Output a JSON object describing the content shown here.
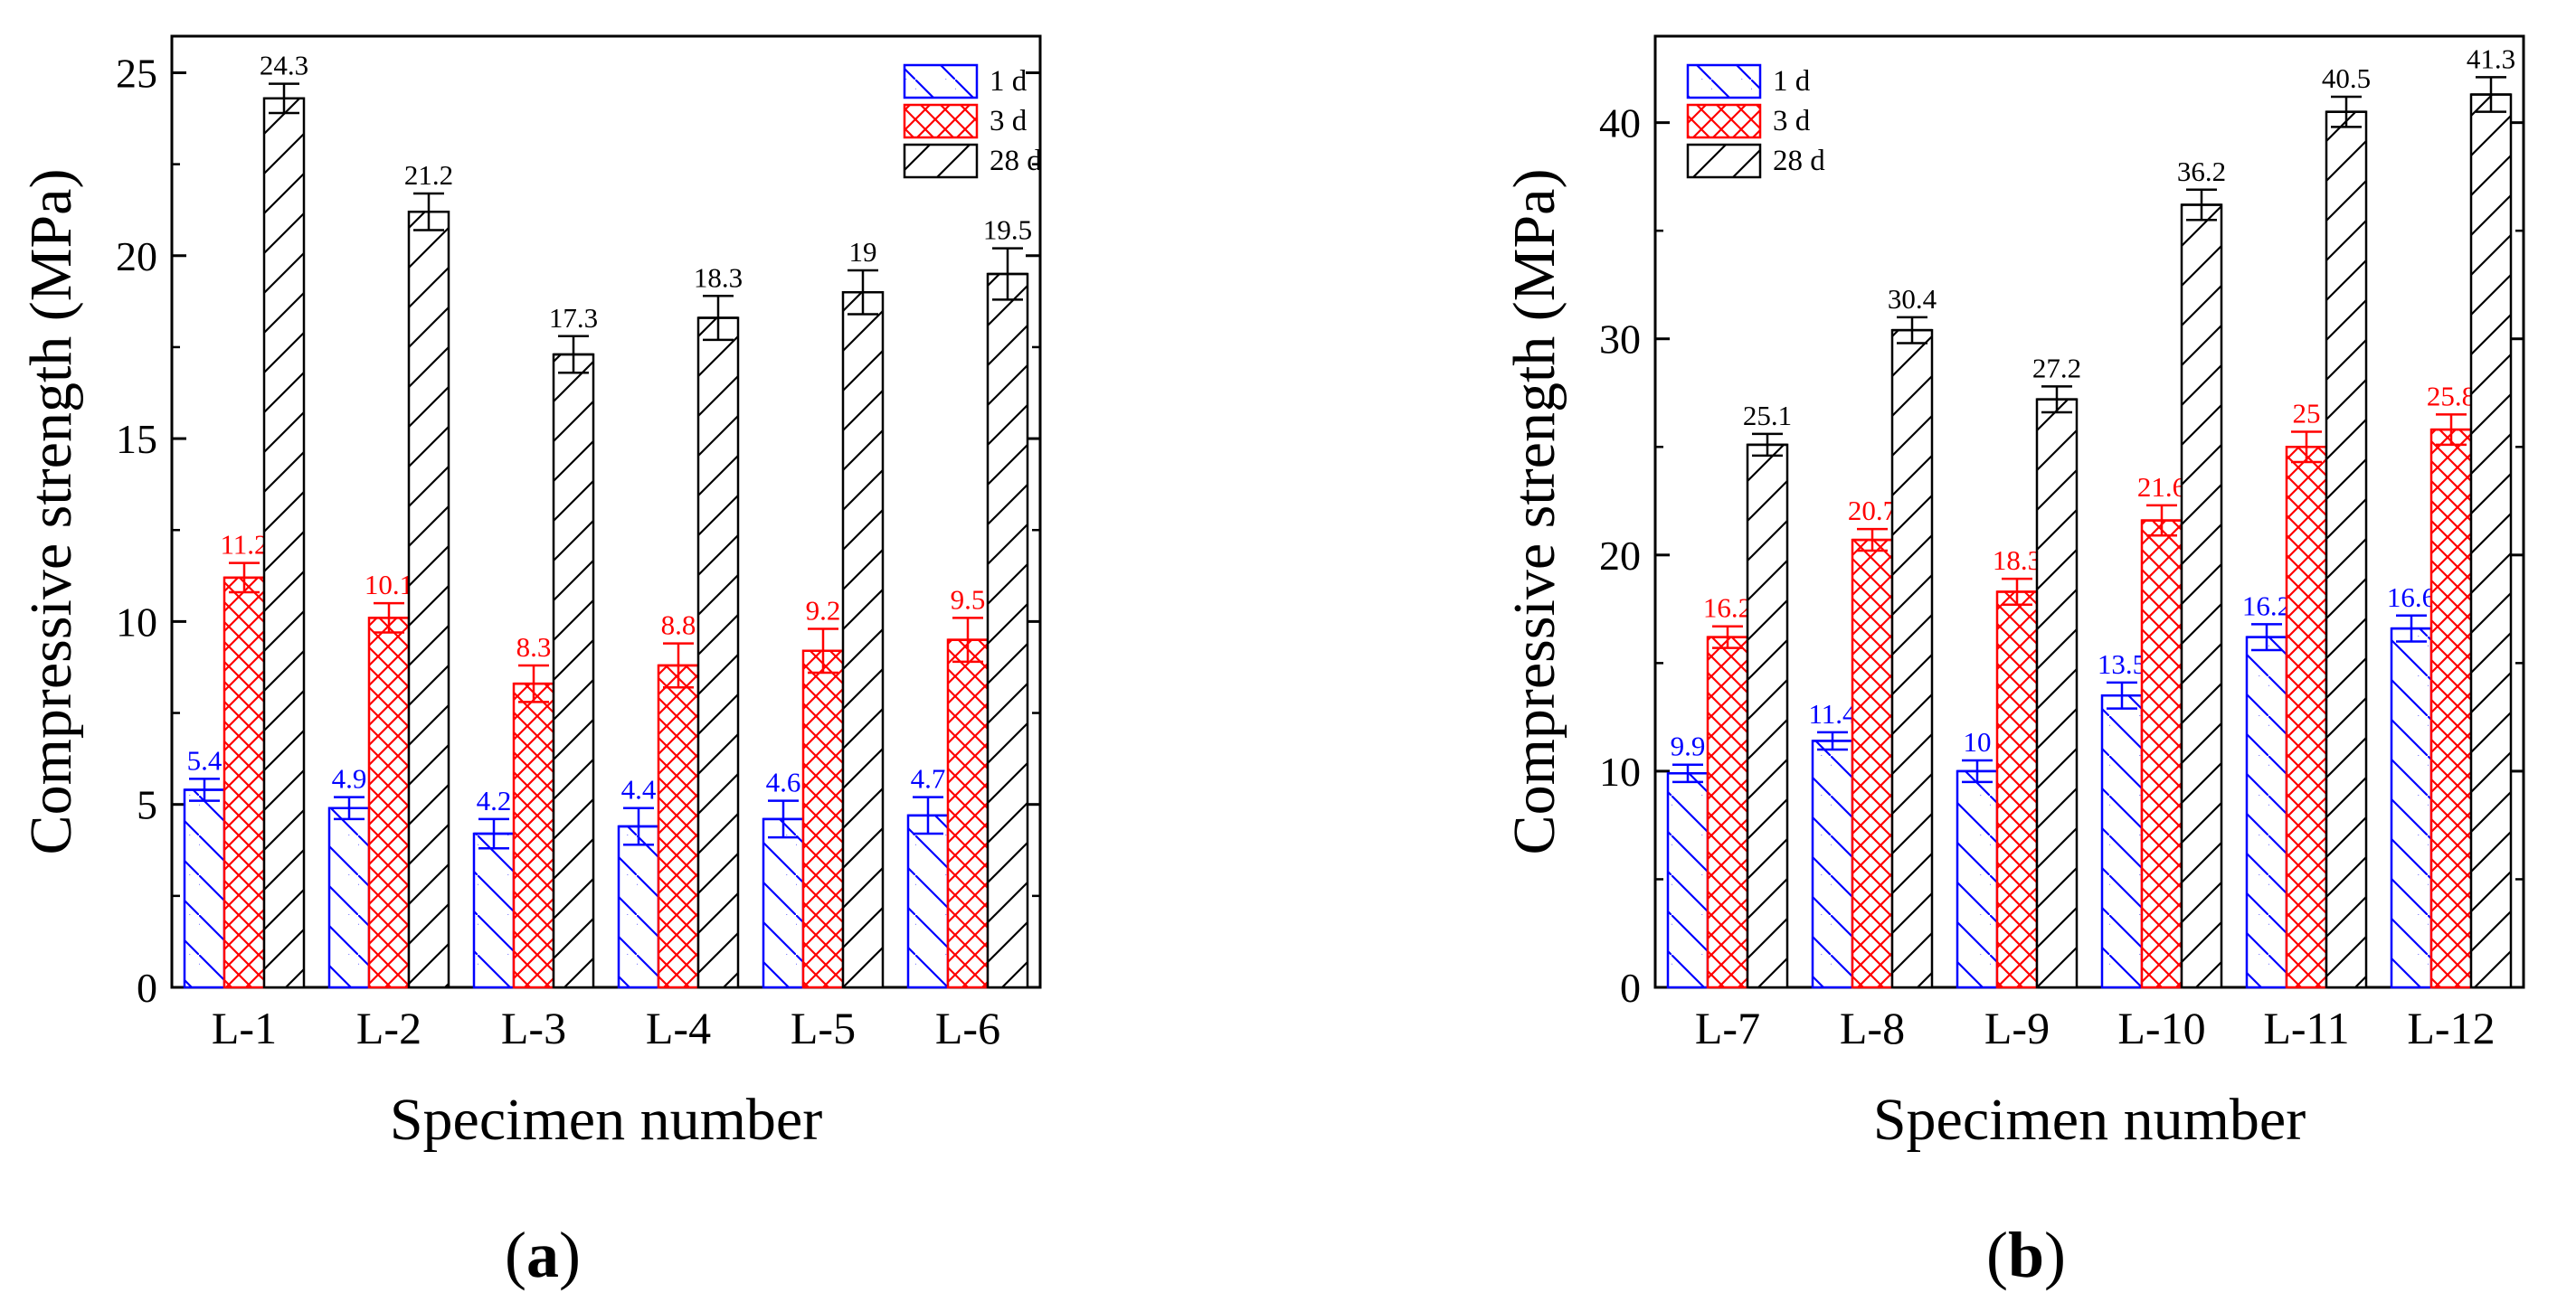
{
  "chart_data": [
    {
      "panel_label": "a",
      "type": "bar",
      "categories": [
        "L-1",
        "L-2",
        "L-3",
        "L-4",
        "L-5",
        "L-6"
      ],
      "series": [
        {
          "name": "1 d",
          "color": "#0000ff",
          "values": [
            5.4,
            4.9,
            4.2,
            4.4,
            4.6,
            4.7
          ],
          "errors": [
            0.3,
            0.3,
            0.4,
            0.5,
            0.5,
            0.5
          ]
        },
        {
          "name": "3 d",
          "color": "#ff0000",
          "values": [
            11.2,
            10.1,
            8.3,
            8.8,
            9.2,
            9.5
          ],
          "errors": [
            0.4,
            0.4,
            0.5,
            0.6,
            0.6,
            0.6
          ]
        },
        {
          "name": "28 d",
          "color": "#000000",
          "values": [
            24.3,
            21.2,
            17.3,
            18.3,
            19,
            19.5
          ],
          "errors": [
            0.4,
            0.5,
            0.5,
            0.6,
            0.6,
            0.7
          ]
        }
      ],
      "data_labels": [
        [
          "5.4",
          "4.9",
          "4.2",
          "4.4",
          "4.6",
          "4.7"
        ],
        [
          "11.2",
          "10.1",
          "8.3",
          "8.8",
          "9.2",
          "9.5"
        ],
        [
          "24.3",
          "21.2",
          "17.3",
          "18.3",
          "19",
          "19.5"
        ]
      ],
      "xlabel": "Specimen number",
      "ylabel": "Compressive strength (MPa)",
      "ylim": [
        0,
        26
      ],
      "yticks": [
        0,
        5,
        10,
        15,
        20,
        25
      ],
      "legend_position": "top-right",
      "grid": false
    },
    {
      "panel_label": "b",
      "type": "bar",
      "categories": [
        "L-7",
        "L-8",
        "L-9",
        "L-10",
        "L-11",
        "L-12"
      ],
      "series": [
        {
          "name": "1 d",
          "color": "#0000ff",
          "values": [
            9.9,
            11.4,
            10,
            13.5,
            16.2,
            16.6
          ],
          "errors": [
            0.4,
            0.4,
            0.5,
            0.6,
            0.6,
            0.6
          ]
        },
        {
          "name": "3 d",
          "color": "#ff0000",
          "values": [
            16.2,
            20.7,
            18.3,
            21.6,
            25,
            25.8
          ],
          "errors": [
            0.5,
            0.5,
            0.6,
            0.7,
            0.7,
            0.7
          ]
        },
        {
          "name": "28 d",
          "color": "#000000",
          "values": [
            25.1,
            30.4,
            27.2,
            36.2,
            40.5,
            41.3
          ],
          "errors": [
            0.5,
            0.6,
            0.6,
            0.7,
            0.7,
            0.8
          ]
        }
      ],
      "data_labels": [
        [
          "9.9",
          "11.4",
          "10",
          "13.5",
          "16.2",
          "16.6"
        ],
        [
          "16.2",
          "20.7",
          "18.3",
          "21.6",
          "25",
          "25.8"
        ],
        [
          "25.1",
          "30.4",
          "27.2",
          "36.2",
          "40.5",
          "41.3"
        ]
      ],
      "xlabel": "Specimen number",
      "ylabel": "Compressive strength (MPa)",
      "ylim": [
        0,
        44
      ],
      "yticks": [
        0,
        10,
        20,
        30,
        40
      ],
      "legend_position": "top-left",
      "grid": false
    }
  ]
}
